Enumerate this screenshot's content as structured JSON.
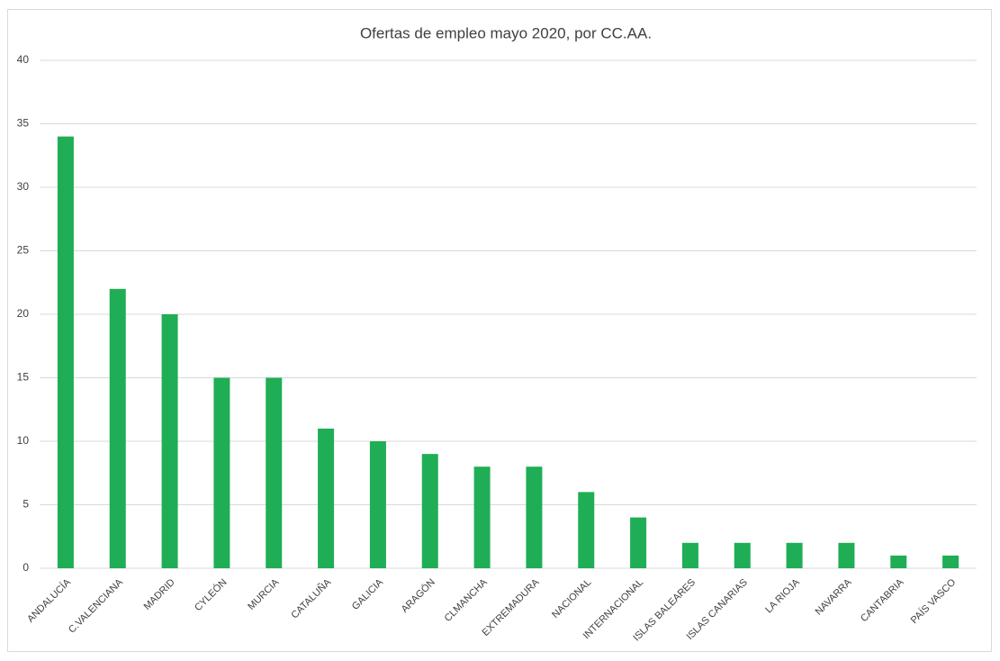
{
  "chart_data": {
    "type": "bar",
    "title": "Ofertas de empleo mayo 2020, por CC.AA.",
    "categories": [
      "ANDALUCÍA",
      "C.VALENCIANA",
      "MADRID",
      "CYLEÓN",
      "MURCIA",
      "CATALUÑA",
      "GALICIA",
      "ARAGÓN",
      "CLMANCHA",
      "EXTREMADURA",
      "NACIONAL",
      "INTERNACIONAL",
      "ISLAS BALEARES",
      "ISLAS CANARIAS",
      "LA RIOJA",
      "NAVARRA",
      "CANTABRIA",
      "PAÍS VASCO"
    ],
    "values": [
      34,
      22,
      20,
      15,
      15,
      11,
      10,
      9,
      8,
      8,
      6,
      4,
      2,
      2,
      2,
      2,
      1,
      1
    ],
    "color": "#1fae55",
    "ylim": [
      0,
      40
    ],
    "yticks": [
      0,
      5,
      10,
      15,
      20,
      25,
      30,
      35,
      40
    ],
    "grid": true
  }
}
